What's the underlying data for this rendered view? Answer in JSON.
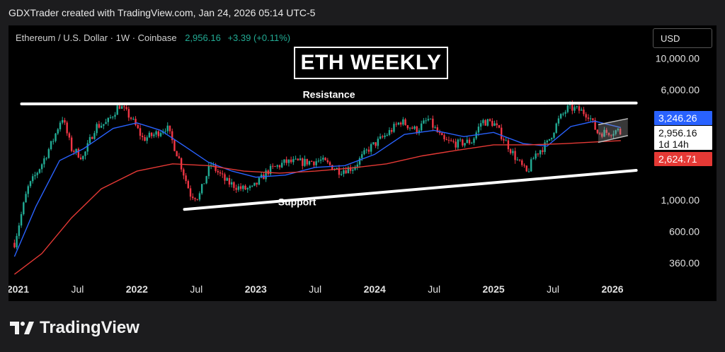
{
  "header": {
    "credit": "GDXTrader created with TradingView.com, Jan 24, 2026 05:14 UTC-5"
  },
  "symbol": {
    "name": "Ethereum / U.S. Dollar · 1W · Coinbase",
    "price": "2,956.16",
    "change": "+3.39 (+0.11%)"
  },
  "currency": "USD",
  "title": "ETH WEEKLY",
  "footer": {
    "logo_text": "TradingView"
  },
  "colors": {
    "up": "#22ab94",
    "down": "#f23645",
    "ma_fast": "#2962ff",
    "ma_slow": "#e53935",
    "current_price_badge": "#ffffff",
    "fast_ma_badge": "#2962ff",
    "slow_ma_badge": "#e53935"
  },
  "chart_data": {
    "type": "candlestick",
    "scale": "log",
    "ylim": [
      250,
      17000
    ],
    "y_ticks": [
      "10,000.00",
      "6,000.00",
      "1,000.00",
      "600.00",
      "360.00"
    ],
    "y_tick_values": [
      10000,
      6000,
      1000,
      600,
      360
    ],
    "x_ticks": [
      "2021",
      "Jul",
      "2022",
      "Jul",
      "2023",
      "Jul",
      "2024",
      "Jul",
      "2025",
      "Jul",
      "2026"
    ],
    "x_tick_values": [
      2021.0,
      2021.5,
      2022.0,
      2022.5,
      2023.0,
      2023.5,
      2024.0,
      2024.5,
      2025.0,
      2025.5,
      2026.0
    ],
    "xlim": [
      2020.92,
      2026.25
    ],
    "price_path": [
      [
        2020.97,
        500
      ],
      [
        2021.08,
        1200
      ],
      [
        2021.2,
        1800
      ],
      [
        2021.3,
        2700
      ],
      [
        2021.37,
        3900
      ],
      [
        2021.45,
        2300
      ],
      [
        2021.55,
        2000
      ],
      [
        2021.65,
        3300
      ],
      [
        2021.75,
        3500
      ],
      [
        2021.85,
        4700
      ],
      [
        2021.95,
        3800
      ],
      [
        2022.05,
        2700
      ],
      [
        2022.15,
        2900
      ],
      [
        2022.25,
        3300
      ],
      [
        2022.35,
        2000
      ],
      [
        2022.45,
        1100
      ],
      [
        2022.52,
        1050
      ],
      [
        2022.62,
        1800
      ],
      [
        2022.75,
        1350
      ],
      [
        2022.88,
        1200
      ],
      [
        2022.97,
        1200
      ],
      [
        2023.1,
        1600
      ],
      [
        2023.25,
        1850
      ],
      [
        2023.4,
        1850
      ],
      [
        2023.55,
        1900
      ],
      [
        2023.7,
        1620
      ],
      [
        2023.82,
        1700
      ],
      [
        2023.95,
        2300
      ],
      [
        2024.1,
        2900
      ],
      [
        2024.22,
        3600
      ],
      [
        2024.35,
        3100
      ],
      [
        2024.45,
        3700
      ],
      [
        2024.58,
        2600
      ],
      [
        2024.7,
        2500
      ],
      [
        2024.82,
        2600
      ],
      [
        2024.9,
        3600
      ],
      [
        2025.0,
        3500
      ],
      [
        2025.1,
        2600
      ],
      [
        2025.2,
        1900
      ],
      [
        2025.28,
        1550
      ],
      [
        2025.35,
        2100
      ],
      [
        2025.45,
        2500
      ],
      [
        2025.55,
        3700
      ],
      [
        2025.63,
        4500
      ],
      [
        2025.72,
        4300
      ],
      [
        2025.8,
        4000
      ],
      [
        2025.87,
        3000
      ],
      [
        2025.95,
        3000
      ],
      [
        2026.05,
        3100
      ],
      [
        2026.07,
        2956
      ]
    ],
    "series": [
      {
        "name": "",
        "points": [
          [
            2020.97,
            400
          ],
          [
            2021.15,
            900
          ],
          [
            2021.35,
            1900
          ],
          [
            2021.55,
            2300
          ],
          [
            2021.8,
            3200
          ],
          [
            2022.0,
            3500
          ],
          [
            2022.2,
            3100
          ],
          [
            2022.4,
            2400
          ],
          [
            2022.6,
            1850
          ],
          [
            2022.8,
            1600
          ],
          [
            2023.0,
            1450
          ],
          [
            2023.25,
            1500
          ],
          [
            2023.5,
            1700
          ],
          [
            2023.75,
            1750
          ],
          [
            2024.0,
            2100
          ],
          [
            2024.25,
            2900
          ],
          [
            2024.5,
            3100
          ],
          [
            2024.75,
            2800
          ],
          [
            2025.0,
            3000
          ],
          [
            2025.25,
            2500
          ],
          [
            2025.45,
            2400
          ],
          [
            2025.65,
            3300
          ],
          [
            2025.85,
            3600
          ],
          [
            2026.07,
            3246
          ]
        ]
      },
      {
        "name": "",
        "points": [
          [
            2020.97,
            300
          ],
          [
            2021.2,
            420
          ],
          [
            2021.45,
            750
          ],
          [
            2021.7,
            1200
          ],
          [
            2022.0,
            1600
          ],
          [
            2022.3,
            1800
          ],
          [
            2022.6,
            1750
          ],
          [
            2022.9,
            1600
          ],
          [
            2023.2,
            1550
          ],
          [
            2023.5,
            1600
          ],
          [
            2023.8,
            1680
          ],
          [
            2024.1,
            1800
          ],
          [
            2024.4,
            2050
          ],
          [
            2024.7,
            2250
          ],
          [
            2025.0,
            2450
          ],
          [
            2025.3,
            2450
          ],
          [
            2025.6,
            2500
          ],
          [
            2025.9,
            2580
          ],
          [
            2026.07,
            2625
          ]
        ]
      }
    ],
    "lines": [
      {
        "label": "Resistance",
        "from": [
          2021.03,
          4760
        ],
        "to": [
          2026.2,
          4830
        ]
      },
      {
        "label": "Support",
        "from": [
          2022.4,
          860
        ],
        "to": [
          2026.2,
          1620
        ]
      }
    ],
    "channel": {
      "upper": [
        [
          2025.88,
          3400
        ],
        [
          2026.13,
          3750
        ]
      ],
      "lower": [
        [
          2025.88,
          2550
        ],
        [
          2026.13,
          2850
        ]
      ]
    },
    "price_labels": [
      {
        "value": "3,246.26",
        "style": "ma_fast"
      },
      {
        "value": "2,956.16",
        "sub": "1d 14h",
        "style": "current"
      },
      {
        "value": "2,624.71",
        "style": "ma_slow"
      }
    ]
  }
}
